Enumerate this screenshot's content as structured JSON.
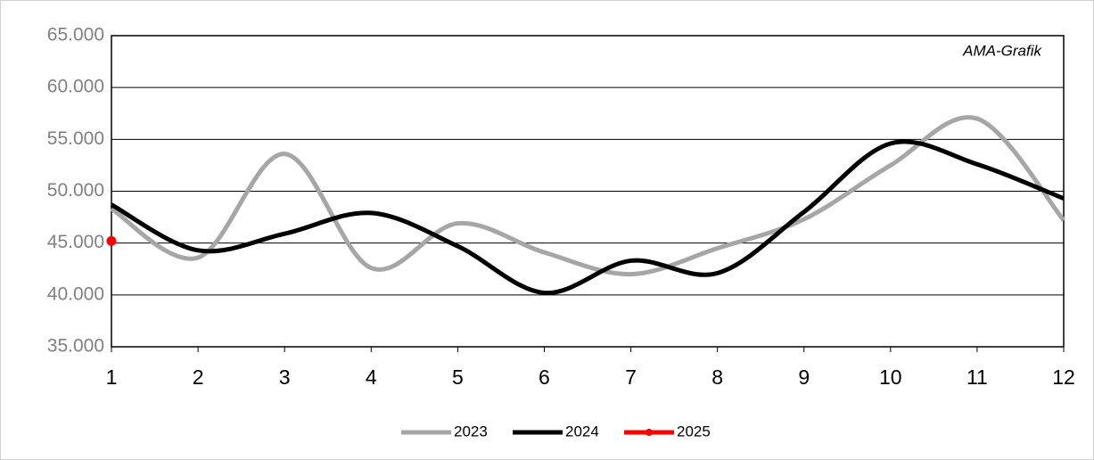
{
  "chart_data": {
    "type": "line",
    "annotation": "AMA-Grafik",
    "x": [
      1,
      2,
      3,
      4,
      5,
      6,
      7,
      8,
      9,
      10,
      11,
      12
    ],
    "series": [
      {
        "name": "2023",
        "color": "#a6a6a6",
        "values": [
          48300,
          43600,
          53600,
          42600,
          46900,
          44100,
          42000,
          44500,
          47300,
          52500,
          57000,
          47200
        ]
      },
      {
        "name": "2024",
        "color": "#000000",
        "values": [
          48700,
          44300,
          45900,
          47900,
          44700,
          40200,
          43300,
          42100,
          48000,
          54600,
          52600,
          49300
        ]
      },
      {
        "name": "2025",
        "color": "#ff0000",
        "marker": true,
        "values": [
          45200,
          null,
          null,
          null,
          null,
          null,
          null,
          null,
          null,
          null,
          null,
          null
        ]
      }
    ],
    "xlim": [
      1,
      12
    ],
    "xticks": [
      1,
      2,
      3,
      4,
      5,
      6,
      7,
      8,
      9,
      10,
      11,
      12
    ],
    "ylim": [
      35000,
      65000
    ],
    "yticks": [
      {
        "value": 35000,
        "label": "35.000"
      },
      {
        "value": 40000,
        "label": "40.000"
      },
      {
        "value": 45000,
        "label": "45.000"
      },
      {
        "value": 50000,
        "label": "50.000"
      },
      {
        "value": 55000,
        "label": "55.000"
      },
      {
        "value": 60000,
        "label": "60.000"
      },
      {
        "value": 65000,
        "label": "65.000"
      }
    ],
    "grid": true,
    "smooth": true,
    "legend": "bottom"
  }
}
